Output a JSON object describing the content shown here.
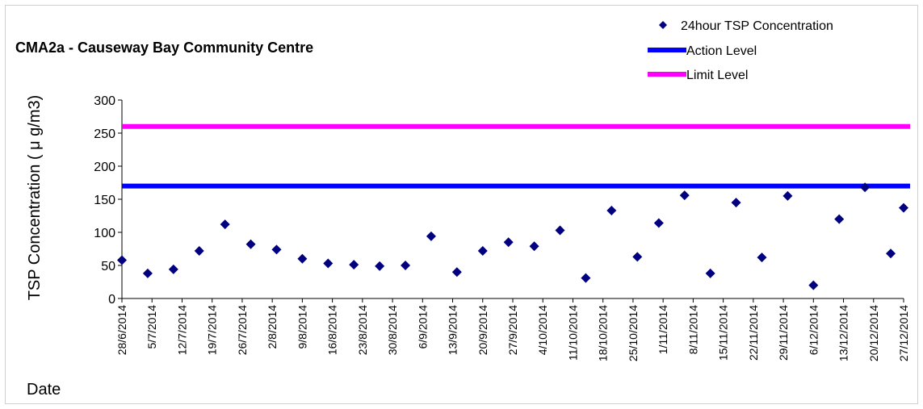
{
  "chart_data": {
    "type": "scatter",
    "title": "CMA2a - Causeway Bay Community Centre",
    "ylabel": "TSP Concentration ( μ g/m3)",
    "xlabel": "Date",
    "ylim": [
      0,
      300
    ],
    "yticks": [
      0,
      50,
      100,
      150,
      200,
      250,
      300
    ],
    "xlim": [
      "2014-06-28",
      "2014-12-27"
    ],
    "x_tick_labels": [
      "28/6/2014",
      "5/7/2014",
      "12/7/2014",
      "19/7/2014",
      "26/7/2014",
      "2/8/2014",
      "9/8/2014",
      "16/8/2014",
      "23/8/2014",
      "30/8/2014",
      "6/9/2014",
      "13/9/2014",
      "20/9/2014",
      "27/9/2014",
      "4/10/2014",
      "11/10/2014",
      "18/10/2014",
      "25/10/2014",
      "1/11/2014",
      "8/11/2014",
      "15/11/2014",
      "22/11/2014",
      "29/11/2014",
      "6/12/2014",
      "13/12/2014",
      "20/12/2014",
      "27/12/2014"
    ],
    "series": [
      {
        "name": "24hour TSP Concentration",
        "marker": "diamond",
        "color": "#000080",
        "x": [
          "2014-06-28",
          "2014-07-04",
          "2014-07-10",
          "2014-07-16",
          "2014-07-22",
          "2014-07-28",
          "2014-08-03",
          "2014-08-09",
          "2014-08-15",
          "2014-08-21",
          "2014-08-27",
          "2014-09-02",
          "2014-09-08",
          "2014-09-14",
          "2014-09-20",
          "2014-09-26",
          "2014-10-02",
          "2014-10-08",
          "2014-10-14",
          "2014-10-20",
          "2014-10-26",
          "2014-10-31",
          "2014-11-06",
          "2014-11-12",
          "2014-11-18",
          "2014-11-24",
          "2014-11-30",
          "2014-12-06",
          "2014-12-12",
          "2014-12-18",
          "2014-12-24",
          "2014-12-30"
        ],
        "values": [
          58,
          38,
          44,
          72,
          112,
          82,
          74,
          60,
          53,
          51,
          49,
          50,
          94,
          40,
          72,
          85,
          79,
          103,
          31,
          133,
          63,
          114,
          156,
          38,
          145,
          62,
          155,
          20,
          120,
          168,
          68,
          137
        ]
      },
      {
        "name": "Action Level",
        "type": "line",
        "color": "#0000ff",
        "value": 170
      },
      {
        "name": "Limit Level",
        "type": "line",
        "color": "#ff00ff",
        "value": 260
      }
    ],
    "legend_position": "top-right",
    "grid": false
  }
}
